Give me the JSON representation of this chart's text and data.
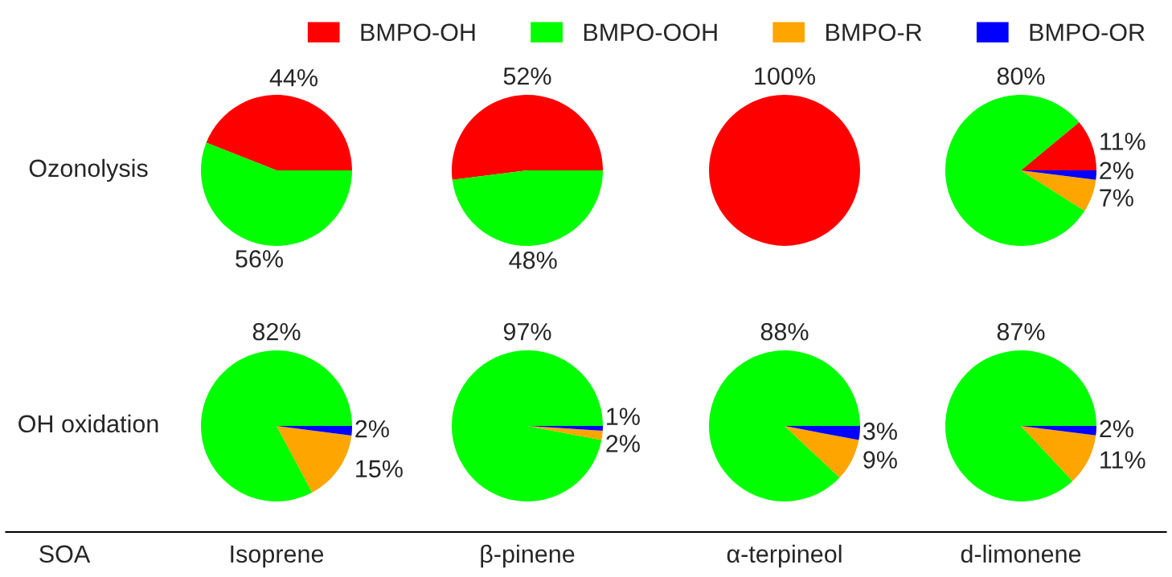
{
  "chart_data": [
    {
      "type": "pie",
      "categories": [
        "BMPO-OH",
        "BMPO-OOH",
        "BMPO-R",
        "BMPO-OR"
      ],
      "values": [
        44,
        56,
        0,
        0
      ],
      "colors": [
        "#ff0000",
        "#00ff00",
        "#ffa500",
        "#0000ff"
      ],
      "value_labels": [
        "44%",
        "56%",
        null,
        null
      ],
      "legend": "top",
      "annotations": [
        "Ozonolysis"
      ]
    },
    {
      "type": "pie",
      "categories": [
        null,
        null,
        null,
        null
      ],
      "values": [
        52,
        48,
        0,
        0
      ],
      "colors": [
        "#ff0000",
        "#00ff00",
        "#ffa500",
        "#0000ff"
      ],
      "value_labels": [
        "52%",
        "48%",
        null,
        null
      ]
    },
    {
      "type": "pie",
      "categories": [
        null,
        null,
        null,
        null
      ],
      "values": [
        100,
        0,
        0,
        0
      ],
      "colors": [
        "#ff0000",
        "#00ff00",
        "#ffa500",
        "#0000ff"
      ],
      "value_labels": [
        "100%",
        null,
        null,
        null
      ]
    },
    {
      "type": "pie",
      "categories": [
        null,
        null,
        null,
        null
      ],
      "values": [
        11,
        80,
        7,
        2
      ],
      "colors": [
        "#ff0000",
        "#00ff00",
        "#ffa500",
        "#0000ff"
      ],
      "value_labels": [
        "11%",
        "80%",
        "7%",
        "2%"
      ]
    },
    {
      "type": "pie",
      "categories": [
        null,
        null,
        null,
        null
      ],
      "values": [
        0,
        82,
        15,
        2
      ],
      "colors": [
        "#ff0000",
        "#00ff00",
        "#ffa500",
        "#0000ff"
      ],
      "value_labels": [
        null,
        "82%",
        "15%",
        "2%"
      ],
      "xlabel": "Isoprene",
      "annotations": [
        "OH oxidation",
        "SOA"
      ]
    },
    {
      "type": "pie",
      "categories": [
        null,
        null,
        null,
        null
      ],
      "values": [
        0,
        97,
        2,
        1
      ],
      "colors": [
        "#ff0000",
        "#00ff00",
        "#ffa500",
        "#0000ff"
      ],
      "value_labels": [
        null,
        "97%",
        "2%",
        "1%"
      ],
      "xlabel": "β-pinene"
    },
    {
      "type": "pie",
      "categories": [
        null,
        null,
        null,
        null
      ],
      "values": [
        0,
        88,
        9,
        3
      ],
      "colors": [
        "#ff0000",
        "#00ff00",
        "#ffa500",
        "#0000ff"
      ],
      "value_labels": [
        null,
        "88%",
        "9%",
        "3%"
      ],
      "xlabel": "α-terpineol"
    },
    {
      "type": "pie",
      "categories": [
        null,
        null,
        null,
        null
      ],
      "values": [
        0,
        87,
        11,
        2
      ],
      "colors": [
        "#ff0000",
        "#00ff00",
        "#ffa500",
        "#0000ff"
      ],
      "value_labels": [
        null,
        "87%",
        "11%",
        "2%"
      ],
      "xlabel": "d-limonene"
    }
  ]
}
